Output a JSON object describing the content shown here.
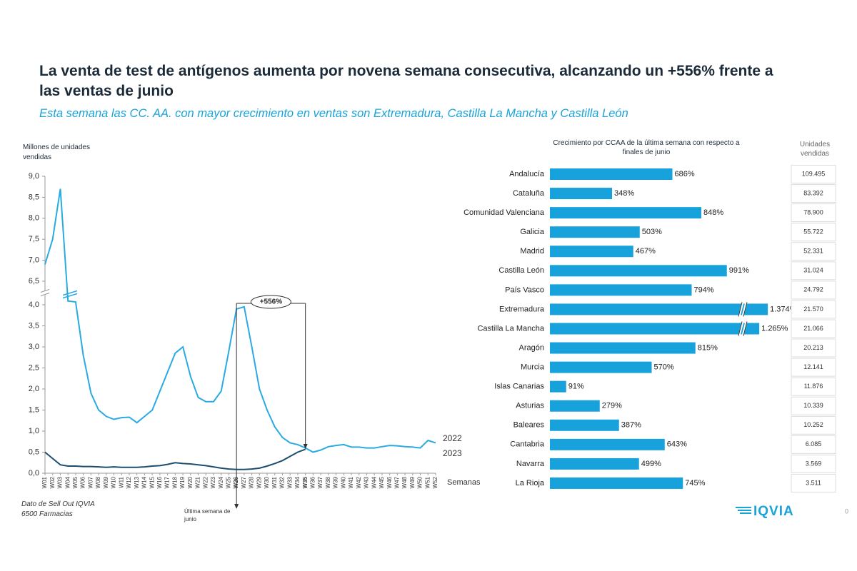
{
  "title": "La venta de test de antígenos aumenta por novena semana consecutiva, alcanzando un +556% frente a las ventas de junio",
  "subtitle": "Esta semana las CC. AA. con mayor crecimiento en ventas son Extremadura, Castilla La Mancha y Castilla León",
  "chart_data": [
    {
      "type": "line",
      "y_label": "Millones de unidades vendidas",
      "x_label": "Semanas",
      "categories": [
        "W01",
        "W02",
        "W03",
        "W04",
        "W05",
        "W06",
        "W07",
        "W08",
        "W09",
        "W10",
        "W11",
        "W12",
        "W13",
        "W14",
        "W15",
        "W16",
        "W17",
        "W18",
        "W19",
        "W20",
        "W21",
        "W22",
        "W23",
        "W24",
        "W25",
        "W26",
        "W27",
        "W28",
        "W29",
        "W30",
        "W31",
        "W32",
        "W33",
        "W34",
        "W35",
        "W36",
        "W37",
        "W38",
        "W39",
        "W40",
        "W41",
        "W42",
        "W43",
        "W44",
        "W45",
        "W46",
        "W47",
        "W48",
        "W49",
        "W50",
        "W51",
        "W52"
      ],
      "bold_categories": [
        "W26",
        "W35"
      ],
      "series": [
        {
          "name": "2022",
          "color": "#29abe2",
          "values": [
            6.9,
            7.5,
            8.7,
            4.4,
            4.3,
            2.8,
            1.9,
            1.5,
            1.35,
            1.28,
            1.32,
            1.33,
            1.2,
            1.35,
            1.5,
            1.95,
            2.4,
            2.85,
            3.0,
            2.3,
            1.8,
            1.7,
            1.7,
            1.95,
            2.9,
            3.9,
            3.95,
            3.0,
            2.0,
            1.5,
            1.1,
            0.85,
            0.72,
            0.68,
            0.6,
            0.5,
            0.55,
            0.63,
            0.66,
            0.68,
            0.62,
            0.62,
            0.6,
            0.6,
            0.63,
            0.66,
            0.65,
            0.63,
            0.62,
            0.6,
            0.78,
            0.72
          ]
        },
        {
          "name": "2023",
          "color": "#1d4e6e",
          "values": [
            0.5,
            0.35,
            0.2,
            0.17,
            0.17,
            0.16,
            0.16,
            0.15,
            0.14,
            0.15,
            0.14,
            0.14,
            0.14,
            0.15,
            0.17,
            0.18,
            0.21,
            0.25,
            0.23,
            0.22,
            0.2,
            0.18,
            0.15,
            0.12,
            0.1,
            0.09,
            0.09,
            0.1,
            0.12,
            0.17,
            0.23,
            0.3,
            0.4,
            0.5,
            0.57,
            null,
            null,
            null,
            null,
            null,
            null,
            null,
            null,
            null,
            null,
            null,
            null,
            null,
            null,
            null,
            null,
            null
          ]
        }
      ],
      "ylim": [
        0,
        9
      ],
      "y_break": [
        4,
        6.5
      ],
      "yticks": [
        {
          "value": 0,
          "label": "0,0"
        },
        {
          "value": 0.5,
          "label": "0,5"
        },
        {
          "value": 1,
          "label": "1,0"
        },
        {
          "value": 1.5,
          "label": "1,5"
        },
        {
          "value": 2,
          "label": "2,0"
        },
        {
          "value": 2.5,
          "label": "2,5"
        },
        {
          "value": 3,
          "label": "3,0"
        },
        {
          "value": 3.5,
          "label": "3,5"
        },
        {
          "value": 4,
          "label": "4,0"
        },
        {
          "value": 6.5,
          "label": "6,5"
        },
        {
          "value": 7,
          "label": "7,0"
        },
        {
          "value": 7.5,
          "label": "7,5"
        },
        {
          "value": 8,
          "label": "8,0"
        },
        {
          "value": 8.5,
          "label": "8,5"
        },
        {
          "value": 9,
          "label": "9,0"
        }
      ],
      "annotations": [
        "+556%",
        "Última semana de junio"
      ],
      "source": [
        "Dato de Sell Out  IQVIA",
        "6500 Farmacias"
      ]
    },
    {
      "type": "hbar",
      "title": "Crecimiento por CCAA de la última semana con respecto a finales de junio",
      "color": "#17a2dc",
      "categories": [
        "Andalucía",
        "Cataluña",
        "Comunidad Valenciana",
        "Galicia",
        "Madrid",
        "Castilla León",
        "País Vasco",
        "Extremadura",
        "Castilla La Mancha",
        "Aragón",
        "Murcia",
        "Islas Canarias",
        "Asturias",
        "Baleares",
        "Cantabria",
        "Navarra",
        "La Rioja"
      ],
      "values": [
        686,
        348,
        848,
        503,
        467,
        991,
        794,
        1374,
        1265,
        815,
        570,
        91,
        279,
        387,
        643,
        499,
        745
      ],
      "value_labels": [
        "686%",
        "348%",
        "848%",
        "503%",
        "467%",
        "991%",
        "794%",
        "1.374%",
        "1.265%",
        "815%",
        "570%",
        "91%",
        "279%",
        "387%",
        "643%",
        "499%",
        "745%"
      ]
    }
  ],
  "units_table": {
    "header": "Unidades vendidas",
    "values": [
      "109.495",
      "83.392",
      "78.900",
      "55.722",
      "52.331",
      "31.024",
      "24.792",
      "21.570",
      "21.066",
      "20.213",
      "12.141",
      "11.876",
      "10.339",
      "10.252",
      "6.085",
      "3.569",
      "3.511"
    ]
  },
  "logo": "IQVIA",
  "page_number": "0"
}
